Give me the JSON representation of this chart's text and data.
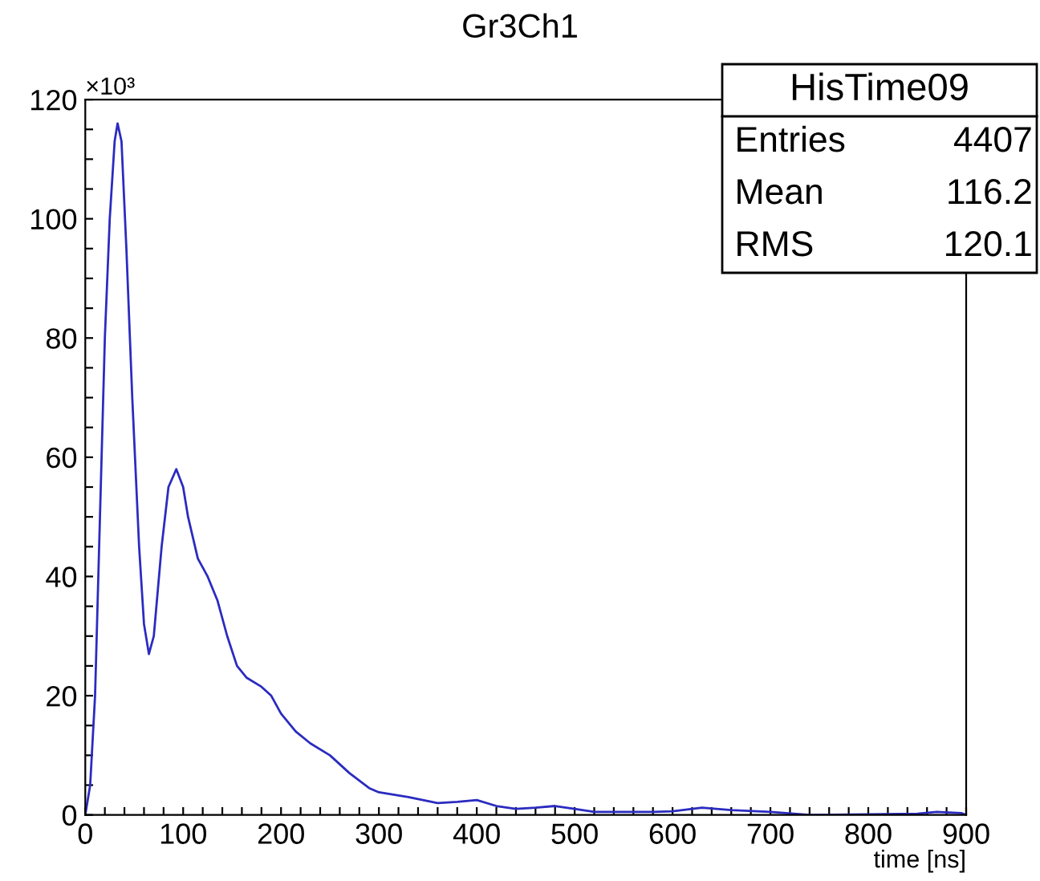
{
  "chart_data": {
    "type": "line",
    "title": "Gr3Ch1",
    "xlabel": "time [ns]",
    "annotations": [
      "×10³",
      "HisTime09",
      "Entries",
      "4407",
      "Mean",
      "116.2",
      "RMS",
      "120.1"
    ],
    "xlim": [
      0,
      900
    ],
    "ylim": [
      0,
      120
    ],
    "xticks": [
      0,
      {
        "value": 20,
        "label": null
      },
      {
        "value": 40,
        "label": null
      },
      {
        "value": 60,
        "label": null
      },
      {
        "value": 80,
        "label": null
      },
      100,
      {
        "value": 120,
        "label": null
      },
      {
        "value": 140,
        "label": null
      },
      {
        "value": 160,
        "label": null
      },
      {
        "value": 180,
        "label": null
      },
      200,
      {
        "value": 220,
        "label": null
      },
      {
        "value": 240,
        "label": null
      },
      {
        "value": 260,
        "label": null
      },
      {
        "value": 280,
        "label": null
      },
      300,
      {
        "value": 320,
        "label": null
      },
      {
        "value": 340,
        "label": null
      },
      {
        "value": 360,
        "label": null
      },
      {
        "value": 380,
        "label": null
      },
      400,
      {
        "value": 420,
        "label": null
      },
      {
        "value": 440,
        "label": null
      },
      {
        "value": 460,
        "label": null
      },
      {
        "value": 480,
        "label": null
      },
      500,
      {
        "value": 520,
        "label": null
      },
      {
        "value": 540,
        "label": null
      },
      {
        "value": 560,
        "label": null
      },
      {
        "value": 580,
        "label": null
      },
      600,
      {
        "value": 620,
        "label": null
      },
      {
        "value": 640,
        "label": null
      },
      {
        "value": 660,
        "label": null
      },
      {
        "value": 680,
        "label": null
      },
      700,
      {
        "value": 720,
        "label": null
      },
      {
        "value": 740,
        "label": null
      },
      {
        "value": 760,
        "label": null
      },
      {
        "value": 780,
        "label": null
      },
      800,
      {
        "value": 820,
        "label": null
      },
      {
        "value": 840,
        "label": null
      },
      {
        "value": 860,
        "label": null
      },
      {
        "value": 880,
        "label": null
      },
      900
    ],
    "yticks": [
      0,
      {
        "value": 5,
        "label": null
      },
      {
        "value": 10,
        "label": null
      },
      {
        "value": 15,
        "label": null
      },
      20,
      {
        "value": 25,
        "label": null
      },
      {
        "value": 30,
        "label": null
      },
      {
        "value": 35,
        "label": null
      },
      40,
      {
        "value": 45,
        "label": null
      },
      {
        "value": 50,
        "label": null
      },
      {
        "value": 55,
        "label": null
      },
      60,
      {
        "value": 65,
        "label": null
      },
      {
        "value": 70,
        "label": null
      },
      {
        "value": 75,
        "label": null
      },
      80,
      {
        "value": 85,
        "label": null
      },
      {
        "value": 90,
        "label": null
      },
      {
        "value": 95,
        "label": null
      },
      100,
      {
        "value": 105,
        "label": null
      },
      {
        "value": 110,
        "label": null
      },
      {
        "value": 115,
        "label": null
      },
      120
    ],
    "series": [
      {
        "color": "#2b2bc0",
        "x": [
          0,
          5,
          10,
          15,
          20,
          25,
          30,
          33,
          37,
          42,
          48,
          55,
          60,
          65,
          70,
          78,
          85,
          93,
          100,
          105,
          115,
          125,
          135,
          145,
          155,
          165,
          180,
          190,
          200,
          215,
          230,
          250,
          270,
          290,
          300,
          330,
          360,
          380,
          400,
          420,
          440,
          460,
          480,
          500,
          520,
          550,
          580,
          600,
          630,
          660,
          700,
          740,
          800,
          850,
          870,
          895,
          900
        ],
        "values": [
          0,
          5,
          20,
          50,
          80,
          100,
          113,
          116,
          113,
          95,
          70,
          45,
          32,
          27,
          30,
          45,
          55,
          58,
          55,
          50,
          43,
          40,
          36,
          30,
          25,
          23,
          21.5,
          20,
          17,
          14,
          12,
          10,
          7,
          4.5,
          3.8,
          3,
          2,
          2.2,
          2.5,
          1.5,
          1,
          1.2,
          1.5,
          1,
          0.5,
          0.5,
          0.5,
          0.6,
          1.2,
          0.8,
          0.5,
          0,
          0.1,
          0.2,
          0.5,
          0.3,
          0
        ]
      }
    ],
    "grid": false,
    "legend": false,
    "marker": "none",
    "line_style": "solid"
  }
}
